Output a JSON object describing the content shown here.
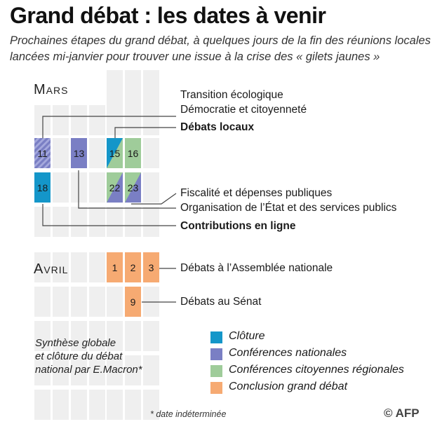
{
  "header": {
    "title": "Grand débat : les dates à venir",
    "subtitle": "Prochaines étapes du grand débat, à quelques jours de la fin des réunions locales lancées mi-janvier pour trouver une issue à la crise des « gilets jaunes »"
  },
  "march": {
    "label": "Mars",
    "days": {
      "d11": "11",
      "d13": "13",
      "d15": "15",
      "d16": "16",
      "d18": "18",
      "d22": "22",
      "d23": "23"
    },
    "labels": {
      "transition": "Transition écologique",
      "democratie": "Démocratie et citoyenneté",
      "debats_locaux": "Débats locaux",
      "fiscalite": "Fiscalité et dépenses publiques",
      "organisation": "Organisation de l’État et des services publics",
      "contributions": "Contributions en ligne"
    }
  },
  "april": {
    "label": "Avril",
    "days": {
      "d1": "1",
      "d2": "2",
      "d3": "3",
      "d9": "9"
    },
    "labels": {
      "assemblee": "Débats à l’Assemblée nationale",
      "senat": "Débats au Sénat"
    }
  },
  "synthesis": "Synthèse globale\net clôture du débat\nnational par E.Macron*",
  "legend": [
    {
      "label": "Clôture",
      "color": "#1496c9"
    },
    {
      "label": "Conférences nationales",
      "color": "#7a7fc4"
    },
    {
      "label": "Conférences citoyennes régionales",
      "color": "#9fcc9a"
    },
    {
      "label": "Conclusion grand débat",
      "color": "#f6aa72"
    }
  ],
  "footnote": "* date indéterminée",
  "credit": "© AFP"
}
